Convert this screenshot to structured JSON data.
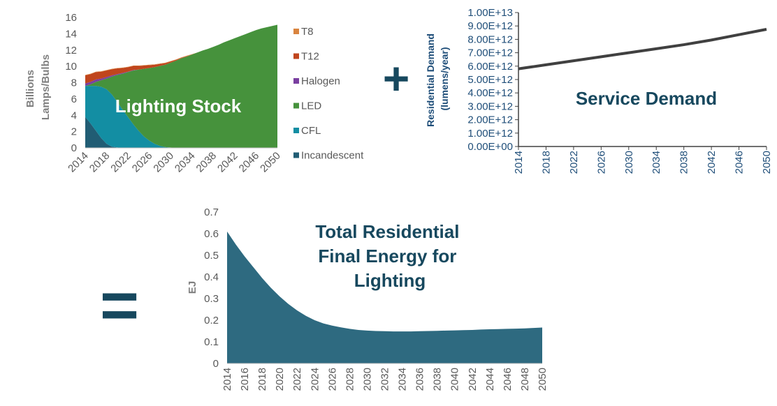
{
  "colors": {
    "T8": "#d9843f",
    "T12": "#c0451d",
    "Halogen": "#7a3fa0",
    "LED": "#46923c",
    "CFL": "#138ea3",
    "Incandescent": "#215d74",
    "demand_line": "#404040",
    "energy_area": "#2e6a80",
    "accent_text": "#17485e"
  },
  "operators": {
    "plus": "+",
    "equals": "="
  },
  "chart_data": [
    {
      "type": "area",
      "stacked": true,
      "overlay_label": "Lighting Stock",
      "ylabel": "Billions Lamps/Bulbs",
      "ylim": [
        0,
        16
      ],
      "yticks": [
        "0",
        "2",
        "4",
        "6",
        "8",
        "10",
        "12",
        "14",
        "16"
      ],
      "xticks": [
        "2014",
        "2018",
        "2022",
        "2026",
        "2030",
        "2034",
        "2038",
        "2042",
        "2046",
        "2050"
      ],
      "x": [
        2014,
        2015,
        2016,
        2017,
        2018,
        2019,
        2020,
        2021,
        2022,
        2023,
        2024,
        2025,
        2026,
        2027,
        2028,
        2029,
        2030,
        2031,
        2032,
        2033,
        2034,
        2035,
        2036,
        2037,
        2038,
        2039,
        2040,
        2041,
        2042,
        2043,
        2044,
        2045,
        2046,
        2047,
        2048,
        2049,
        2050
      ],
      "series": [
        {
          "name": "Incandescent",
          "values": [
            3.8,
            3.0,
            2.1,
            1.2,
            0.5,
            0.15,
            0.05,
            0,
            0,
            0,
            0,
            0,
            0,
            0,
            0,
            0,
            0,
            0,
            0,
            0,
            0,
            0,
            0,
            0,
            0,
            0,
            0,
            0,
            0,
            0,
            0,
            0,
            0,
            0,
            0,
            0,
            0
          ]
        },
        {
          "name": "CFL",
          "values": [
            3.8,
            4.6,
            5.5,
            6.3,
            6.7,
            6.4,
            5.6,
            4.7,
            3.8,
            2.9,
            2.1,
            1.4,
            0.9,
            0.5,
            0.25,
            0.1,
            0.05,
            0,
            0,
            0,
            0,
            0,
            0,
            0,
            0,
            0,
            0,
            0,
            0,
            0,
            0,
            0,
            0,
            0,
            0,
            0,
            0
          ]
        },
        {
          "name": "LED",
          "values": [
            0,
            0.2,
            0.5,
            0.8,
            1.3,
            2.2,
            3.3,
            4.4,
            5.5,
            6.6,
            7.5,
            8.3,
            8.9,
            9.4,
            9.8,
            10.1,
            10.4,
            10.7,
            11.0,
            11.2,
            11.45,
            11.7,
            11.95,
            12.15,
            12.4,
            12.65,
            12.95,
            13.2,
            13.45,
            13.7,
            13.95,
            14.2,
            14.45,
            14.65,
            14.8,
            14.95,
            15.1
          ]
        },
        {
          "name": "Halogen",
          "values": [
            0.3,
            0.3,
            0.3,
            0.2,
            0.2,
            0.15,
            0.1,
            0.1,
            0.05,
            0.05,
            0,
            0,
            0,
            0,
            0,
            0,
            0,
            0,
            0,
            0,
            0,
            0,
            0,
            0,
            0,
            0,
            0,
            0,
            0,
            0,
            0,
            0,
            0,
            0,
            0,
            0,
            0
          ]
        },
        {
          "name": "T12",
          "values": [
            1.0,
            0.95,
            0.9,
            0.85,
            0.8,
            0.75,
            0.7,
            0.6,
            0.55,
            0.5,
            0.45,
            0.4,
            0.35,
            0.3,
            0.25,
            0.2,
            0.15,
            0.1,
            0.05,
            0.05,
            0,
            0,
            0,
            0,
            0,
            0,
            0,
            0,
            0,
            0,
            0,
            0,
            0,
            0,
            0,
            0,
            0
          ]
        },
        {
          "name": "T8",
          "values": [
            0.05,
            0.05,
            0.05,
            0.05,
            0.05,
            0.05,
            0.05,
            0.05,
            0.05,
            0.05,
            0.05,
            0.05,
            0.05,
            0.05,
            0.05,
            0.05,
            0.05,
            0.05,
            0.05,
            0.05,
            0.05,
            0,
            0,
            0,
            0,
            0,
            0,
            0,
            0,
            0,
            0,
            0,
            0,
            0,
            0,
            0,
            0
          ]
        }
      ],
      "legend": [
        "T8",
        "T12",
        "Halogen",
        "LED",
        "CFL",
        "Incandescent"
      ],
      "legend_position": "right"
    },
    {
      "type": "line",
      "overlay_label": "Service Demand",
      "ylabel": "Residential Demand (lumens/year)",
      "ylim": [
        0,
        10000000000000.0
      ],
      "yticks": [
        "0.00E+00",
        "1.00E+12",
        "2.00E+12",
        "3.00E+12",
        "4.00E+12",
        "5.00E+12",
        "6.00E+12",
        "7.00E+12",
        "8.00E+12",
        "9.00E+12",
        "1.00E+13"
      ],
      "xticks": [
        "2014",
        "2018",
        "2022",
        "2026",
        "2030",
        "2034",
        "2038",
        "2042",
        "2046",
        "2050"
      ],
      "x": [
        2014,
        2018,
        2022,
        2026,
        2030,
        2034,
        2038,
        2042,
        2046,
        2050
      ],
      "values": [
        5800000000000.0,
        6100000000000.0,
        6400000000000.0,
        6700000000000.0,
        7000000000000.0,
        7300000000000.0,
        7600000000000.0,
        7950000000000.0,
        8350000000000.0,
        8750000000000.0
      ]
    },
    {
      "type": "area",
      "title": "Total Residential Final Energy for Lighting",
      "title_lines": [
        "Total Residential",
        "Final Energy for",
        "Lighting"
      ],
      "ylabel": "EJ",
      "ylim": [
        0,
        0.7
      ],
      "yticks": [
        "0",
        "0.1",
        "0.2",
        "0.3",
        "0.4",
        "0.5",
        "0.6",
        "0.7"
      ],
      "xticks": [
        "2014",
        "2016",
        "2018",
        "2020",
        "2022",
        "2024",
        "2026",
        "2028",
        "2030",
        "2032",
        "2034",
        "2036",
        "2038",
        "2040",
        "2042",
        "2044",
        "2046",
        "2048",
        "2050"
      ],
      "x": [
        2014,
        2015,
        2016,
        2017,
        2018,
        2019,
        2020,
        2021,
        2022,
        2023,
        2024,
        2025,
        2026,
        2027,
        2028,
        2029,
        2030,
        2031,
        2032,
        2033,
        2034,
        2035,
        2036,
        2037,
        2038,
        2039,
        2040,
        2041,
        2042,
        2043,
        2044,
        2045,
        2046,
        2047,
        2048,
        2049,
        2050
      ],
      "values": [
        0.61,
        0.55,
        0.495,
        0.445,
        0.395,
        0.35,
        0.31,
        0.275,
        0.245,
        0.22,
        0.2,
        0.185,
        0.175,
        0.167,
        0.16,
        0.155,
        0.152,
        0.15,
        0.149,
        0.148,
        0.148,
        0.148,
        0.149,
        0.15,
        0.151,
        0.152,
        0.153,
        0.154,
        0.155,
        0.157,
        0.158,
        0.159,
        0.16,
        0.161,
        0.162,
        0.164,
        0.166
      ]
    }
  ]
}
